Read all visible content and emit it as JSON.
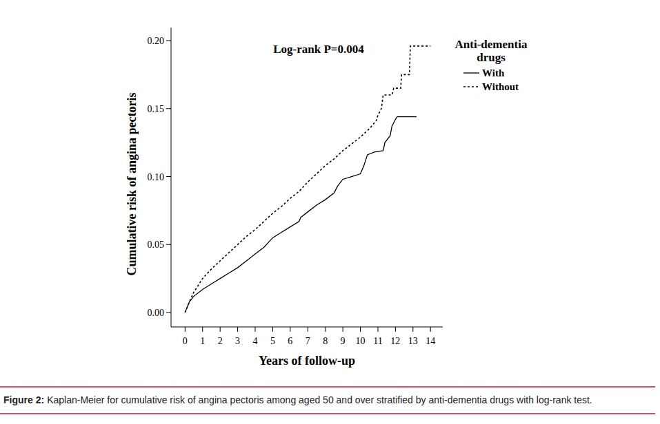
{
  "chart_data": {
    "type": "line",
    "x_label": "Years of follow-up",
    "y_label": "Cumulative risk of angina pectoris",
    "annotations": [
      "Log-rank P=0.004"
    ],
    "legend_title": "Anti-dementia drugs",
    "legend": "right",
    "caption": {
      "label": "Figure 2:",
      "text": "Kaplan-Meier for cumulative risk of angina pectoris among aged 50 and over stratified by anti-dementia drugs with log-rank test."
    },
    "xlim": [
      -0.8,
      14.7
    ],
    "ylim": [
      -0.0106,
      0.2096
    ],
    "xticks": [
      0,
      1,
      2,
      3,
      4,
      5,
      6,
      7,
      8,
      9,
      10,
      11,
      12,
      13,
      14
    ],
    "yticks": [
      {
        "value": 0.2,
        "label": "0.20"
      },
      {
        "value": 0.15,
        "label": "0.15"
      },
      {
        "value": 0.1,
        "label": "0.10"
      },
      {
        "value": 0.05,
        "label": "0.05"
      },
      {
        "value": 0,
        "label": "0.00"
      }
    ],
    "grid": false,
    "series": [
      {
        "name": "With",
        "color": "#000000",
        "line_style": "solid",
        "x": [
          0,
          0.25,
          0.5,
          1,
          1.5,
          2,
          2.5,
          3,
          3.5,
          4,
          4.5,
          5,
          5.5,
          6,
          6.5,
          6.6,
          7,
          7.5,
          8,
          8.5,
          8.7,
          9,
          9.5,
          10,
          10.2,
          10.4,
          10.8,
          11.3,
          11.4,
          11.7,
          11.8,
          12,
          12.1,
          13.2
        ],
        "values": [
          0,
          0.008,
          0.012,
          0.017,
          0.021,
          0.025,
          0.029,
          0.033,
          0.038,
          0.043,
          0.048,
          0.055,
          0.059,
          0.063,
          0.067,
          0.07,
          0.074,
          0.079,
          0.083,
          0.088,
          0.093,
          0.098,
          0.1,
          0.102,
          0.108,
          0.116,
          0.118,
          0.119,
          0.125,
          0.13,
          0.137,
          0.142,
          0.144,
          0.144
        ]
      },
      {
        "name": "Without",
        "color": "#000000",
        "line_style": "dashed",
        "x": [
          0,
          0.25,
          0.5,
          1,
          1.5,
          2,
          2.5,
          3,
          3.5,
          4,
          4.5,
          5,
          5.5,
          6,
          6.5,
          7,
          7.5,
          8,
          8.5,
          9,
          9.5,
          10,
          10.5,
          10.9,
          11,
          11.2,
          11.3,
          11.8,
          11.9,
          12.3,
          12.35,
          12.8,
          12.85,
          14
        ],
        "values": [
          0,
          0.008,
          0.015,
          0.025,
          0.032,
          0.038,
          0.044,
          0.05,
          0.056,
          0.061,
          0.067,
          0.073,
          0.078,
          0.084,
          0.089,
          0.096,
          0.102,
          0.108,
          0.113,
          0.119,
          0.124,
          0.129,
          0.135,
          0.141,
          0.145,
          0.15,
          0.16,
          0.16,
          0.165,
          0.165,
          0.175,
          0.175,
          0.196,
          0.196
        ]
      }
    ]
  }
}
